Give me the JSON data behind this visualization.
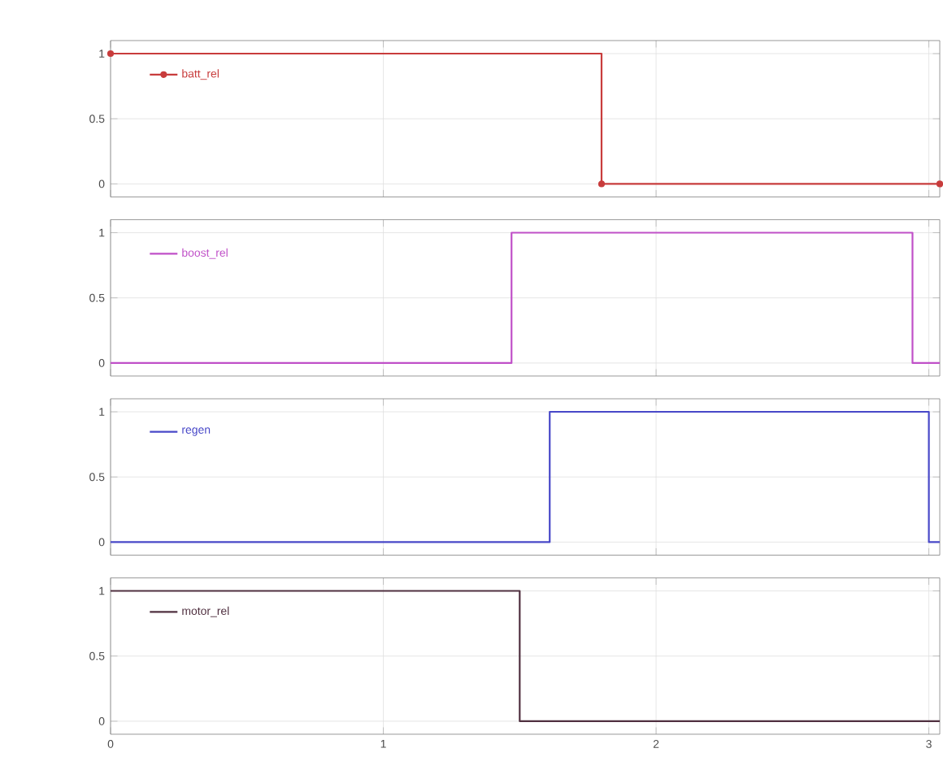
{
  "chart_data": [
    {
      "type": "step",
      "series": [
        {
          "name": "batt_rel",
          "color": "#c83c3c",
          "x": [
            0,
            1.8,
            3.04
          ],
          "values": [
            1,
            0,
            0
          ]
        }
      ],
      "xlim": [
        0,
        3.04
      ],
      "xticks": [
        0,
        1,
        2,
        3
      ],
      "ylim": [
        -0.1,
        1.1
      ],
      "yticks": [
        0,
        0.5,
        1
      ],
      "grid": true,
      "legend": "top left",
      "marker": "circle",
      "tick_labels": "y"
    },
    {
      "type": "step",
      "series": [
        {
          "name": "boost_rel",
          "color": "#c050c8",
          "x": [
            0,
            1.47,
            2.94,
            3.04
          ],
          "values": [
            0,
            1,
            0,
            0
          ]
        }
      ],
      "xlim": [
        0,
        3.04
      ],
      "xticks": [
        0,
        1,
        2,
        3
      ],
      "ylim": [
        -0.1,
        1.1
      ],
      "yticks": [
        0,
        0.5,
        1
      ],
      "grid": true,
      "legend": "top left",
      "tick_labels": "y"
    },
    {
      "type": "step",
      "series": [
        {
          "name": "regen",
          "color": "#4848c8",
          "x": [
            0,
            1.61,
            3.0,
            3.04
          ],
          "values": [
            0,
            1,
            0,
            0
          ]
        }
      ],
      "xlim": [
        0,
        3.04
      ],
      "xticks": [
        0,
        1,
        2,
        3
      ],
      "ylim": [
        -0.1,
        1.1
      ],
      "yticks": [
        0,
        0.5,
        1
      ],
      "grid": true,
      "legend": "top left",
      "tick_labels": "y"
    },
    {
      "type": "step",
      "series": [
        {
          "name": "motor_rel",
          "color": "#503040",
          "x": [
            0,
            1.5,
            3.04
          ],
          "values": [
            1,
            0,
            0
          ]
        }
      ],
      "xlim": [
        0,
        3.04
      ],
      "xticks": [
        0,
        1,
        2,
        3
      ],
      "ylim": [
        -0.1,
        1.1
      ],
      "yticks": [
        0,
        0.5,
        1
      ],
      "grid": true,
      "legend": "top left"
    }
  ]
}
